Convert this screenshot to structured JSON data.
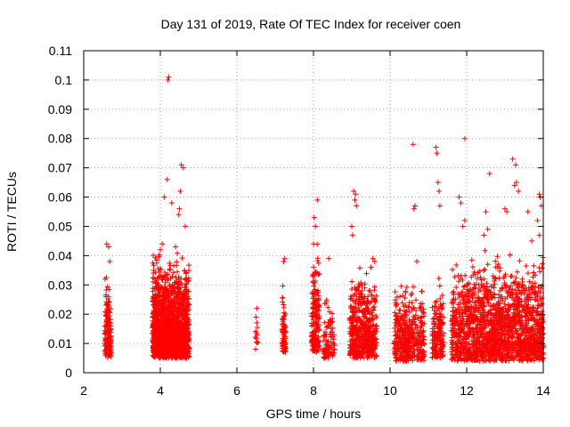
{
  "chart_data": {
    "type": "scatter",
    "title": "Day 131 of 2019, Rate Of TEC Index for receiver coen",
    "xlabel": "GPS time / hours",
    "ylabel": "ROTI / TECUs",
    "xlim": [
      2,
      14
    ],
    "ylim": [
      0,
      0.11
    ],
    "xticks": [
      2,
      4,
      6,
      8,
      10,
      12,
      14
    ],
    "xtick_labels": [
      "2",
      "4",
      "6",
      "8",
      "10",
      "12",
      "14"
    ],
    "yticks": [
      0,
      0.01,
      0.02,
      0.03,
      0.04,
      0.05,
      0.06,
      0.07,
      0.08,
      0.09,
      0.1,
      0.11
    ],
    "ytick_labels": [
      "0",
      "0.01",
      "0.02",
      "0.03",
      "0.04",
      "0.05",
      "0.06",
      "0.07",
      "0.08",
      "0.09",
      "0.1",
      "0.11"
    ],
    "grid": true,
    "marker": "+",
    "marker_color": "#ff0000",
    "clusters": [
      {
        "x_range": [
          2.55,
          2.72
        ],
        "y_range": [
          0.005,
          0.038
        ],
        "count": 150
      },
      {
        "x_range": [
          3.8,
          4.75
        ],
        "y_range": [
          0.005,
          0.045
        ],
        "count": 1500
      },
      {
        "x_range": [
          6.48,
          6.55
        ],
        "y_range": [
          0.008,
          0.022
        ],
        "count": 12
      },
      {
        "x_range": [
          7.18,
          7.28
        ],
        "y_range": [
          0.007,
          0.032
        ],
        "count": 80
      },
      {
        "x_range": [
          7.95,
          8.15
        ],
        "y_range": [
          0.007,
          0.048
        ],
        "count": 180
      },
      {
        "x_range": [
          8.25,
          8.55
        ],
        "y_range": [
          0.005,
          0.03
        ],
        "count": 90
      },
      {
        "x_range": [
          8.95,
          9.65
        ],
        "y_range": [
          0.005,
          0.04
        ],
        "count": 500
      },
      {
        "x_range": [
          10.1,
          10.9
        ],
        "y_range": [
          0.004,
          0.035
        ],
        "count": 400
      },
      {
        "x_range": [
          11.1,
          11.4
        ],
        "y_range": [
          0.005,
          0.035
        ],
        "count": 160
      },
      {
        "x_range": [
          11.6,
          14.0
        ],
        "y_range": [
          0.004,
          0.045
        ],
        "count": 1700
      }
    ],
    "points": [
      [
        2.6,
        0.044
      ],
      [
        2.65,
        0.043
      ],
      [
        2.68,
        0.038
      ],
      [
        4.2,
        0.1
      ],
      [
        4.22,
        0.101
      ],
      [
        4.18,
        0.066
      ],
      [
        4.55,
        0.071
      ],
      [
        4.6,
        0.07
      ],
      [
        4.52,
        0.062
      ],
      [
        4.1,
        0.06
      ],
      [
        4.3,
        0.058
      ],
      [
        4.5,
        0.056
      ],
      [
        4.48,
        0.054
      ],
      [
        4.65,
        0.05
      ],
      [
        4.0,
        0.042
      ],
      [
        4.05,
        0.044
      ],
      [
        4.4,
        0.043
      ],
      [
        6.52,
        0.022
      ],
      [
        6.5,
        0.019
      ],
      [
        7.25,
        0.039
      ],
      [
        7.22,
        0.038
      ],
      [
        8.1,
        0.059
      ],
      [
        8.02,
        0.053
      ],
      [
        8.05,
        0.05
      ],
      [
        8.0,
        0.044
      ],
      [
        8.4,
        0.039
      ],
      [
        9.05,
        0.062
      ],
      [
        9.1,
        0.061
      ],
      [
        9.08,
        0.059
      ],
      [
        9.12,
        0.057
      ],
      [
        9.0,
        0.05
      ],
      [
        9.02,
        0.047
      ],
      [
        9.55,
        0.039
      ],
      [
        9.6,
        0.038
      ],
      [
        9.5,
        0.036
      ],
      [
        10.6,
        0.078
      ],
      [
        10.65,
        0.057
      ],
      [
        10.62,
        0.056
      ],
      [
        10.7,
        0.038
      ],
      [
        11.2,
        0.077
      ],
      [
        11.22,
        0.075
      ],
      [
        11.25,
        0.065
      ],
      [
        11.28,
        0.062
      ],
      [
        11.3,
        0.057
      ],
      [
        11.95,
        0.08
      ],
      [
        11.8,
        0.06
      ],
      [
        11.85,
        0.058
      ],
      [
        11.9,
        0.05
      ],
      [
        11.95,
        0.052
      ],
      [
        12.6,
        0.068
      ],
      [
        12.5,
        0.055
      ],
      [
        12.55,
        0.049
      ],
      [
        12.45,
        0.047
      ],
      [
        13.0,
        0.056
      ],
      [
        13.05,
        0.055
      ],
      [
        13.2,
        0.073
      ],
      [
        13.28,
        0.071
      ],
      [
        13.3,
        0.065
      ],
      [
        13.25,
        0.064
      ],
      [
        13.35,
        0.062
      ],
      [
        13.6,
        0.055
      ],
      [
        13.9,
        0.061
      ],
      [
        13.92,
        0.06
      ],
      [
        13.95,
        0.057
      ],
      [
        13.85,
        0.052
      ],
      [
        13.9,
        0.047
      ],
      [
        13.7,
        0.045
      ]
    ]
  }
}
